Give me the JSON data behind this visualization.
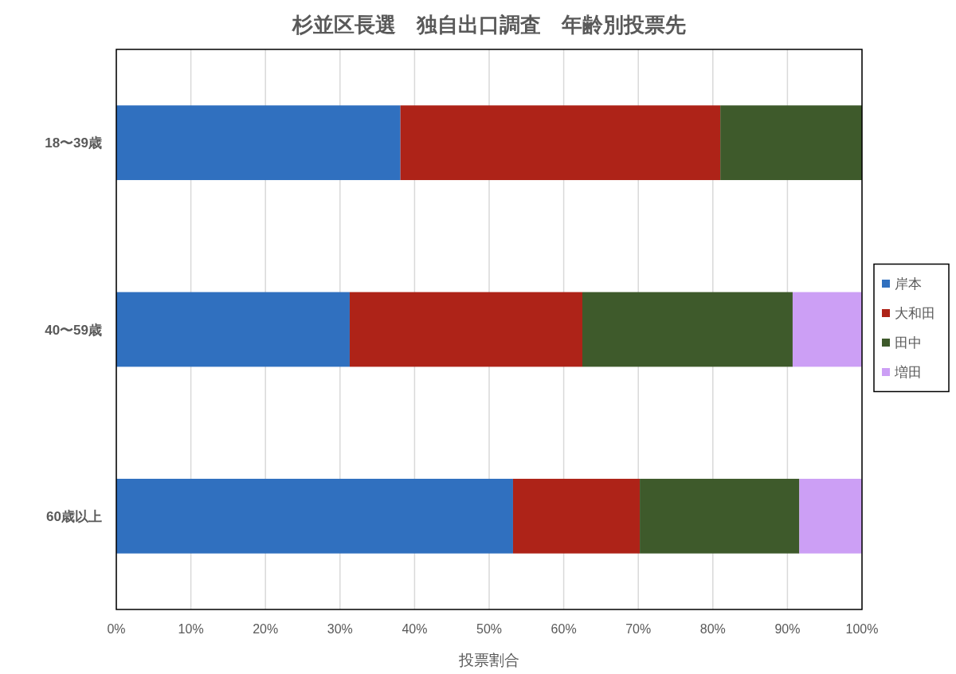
{
  "chart_data": {
    "type": "bar",
    "title": "杉並区長選　独自出口調査　年齢別投票先",
    "xlabel": "投票割合",
    "orientation": "horizontal",
    "stacked": true,
    "categories": [
      "18〜39歳",
      "40〜59歳",
      "60歳以上"
    ],
    "series": [
      {
        "name": "岸本",
        "color": "#3070bf",
        "values": [
          38.1,
          31.3,
          53.2
        ]
      },
      {
        "name": "大和田",
        "color": "#ae2318",
        "values": [
          42.9,
          31.2,
          17.0
        ]
      },
      {
        "name": "田中",
        "color": "#3e5a2b",
        "values": [
          19.0,
          28.2,
          21.4
        ]
      },
      {
        "name": "増田",
        "color": "#cc9ff5",
        "values": [
          null,
          9.3,
          8.4
        ]
      }
    ],
    "xlim": [
      0,
      100
    ],
    "xticks": [
      {
        "value": 0,
        "label": "0%"
      },
      {
        "value": 10,
        "label": "10%"
      },
      {
        "value": 20,
        "label": "20%"
      },
      {
        "value": 30,
        "label": "30%"
      },
      {
        "value": 40,
        "label": "40%"
      },
      {
        "value": 50,
        "label": "50%"
      },
      {
        "value": 60,
        "label": "60%"
      },
      {
        "value": 70,
        "label": "70%"
      },
      {
        "value": 80,
        "label": "80%"
      },
      {
        "value": 90,
        "label": "90%"
      },
      {
        "value": 100,
        "label": "100%"
      }
    ],
    "grid": "x",
    "legend": "right"
  }
}
